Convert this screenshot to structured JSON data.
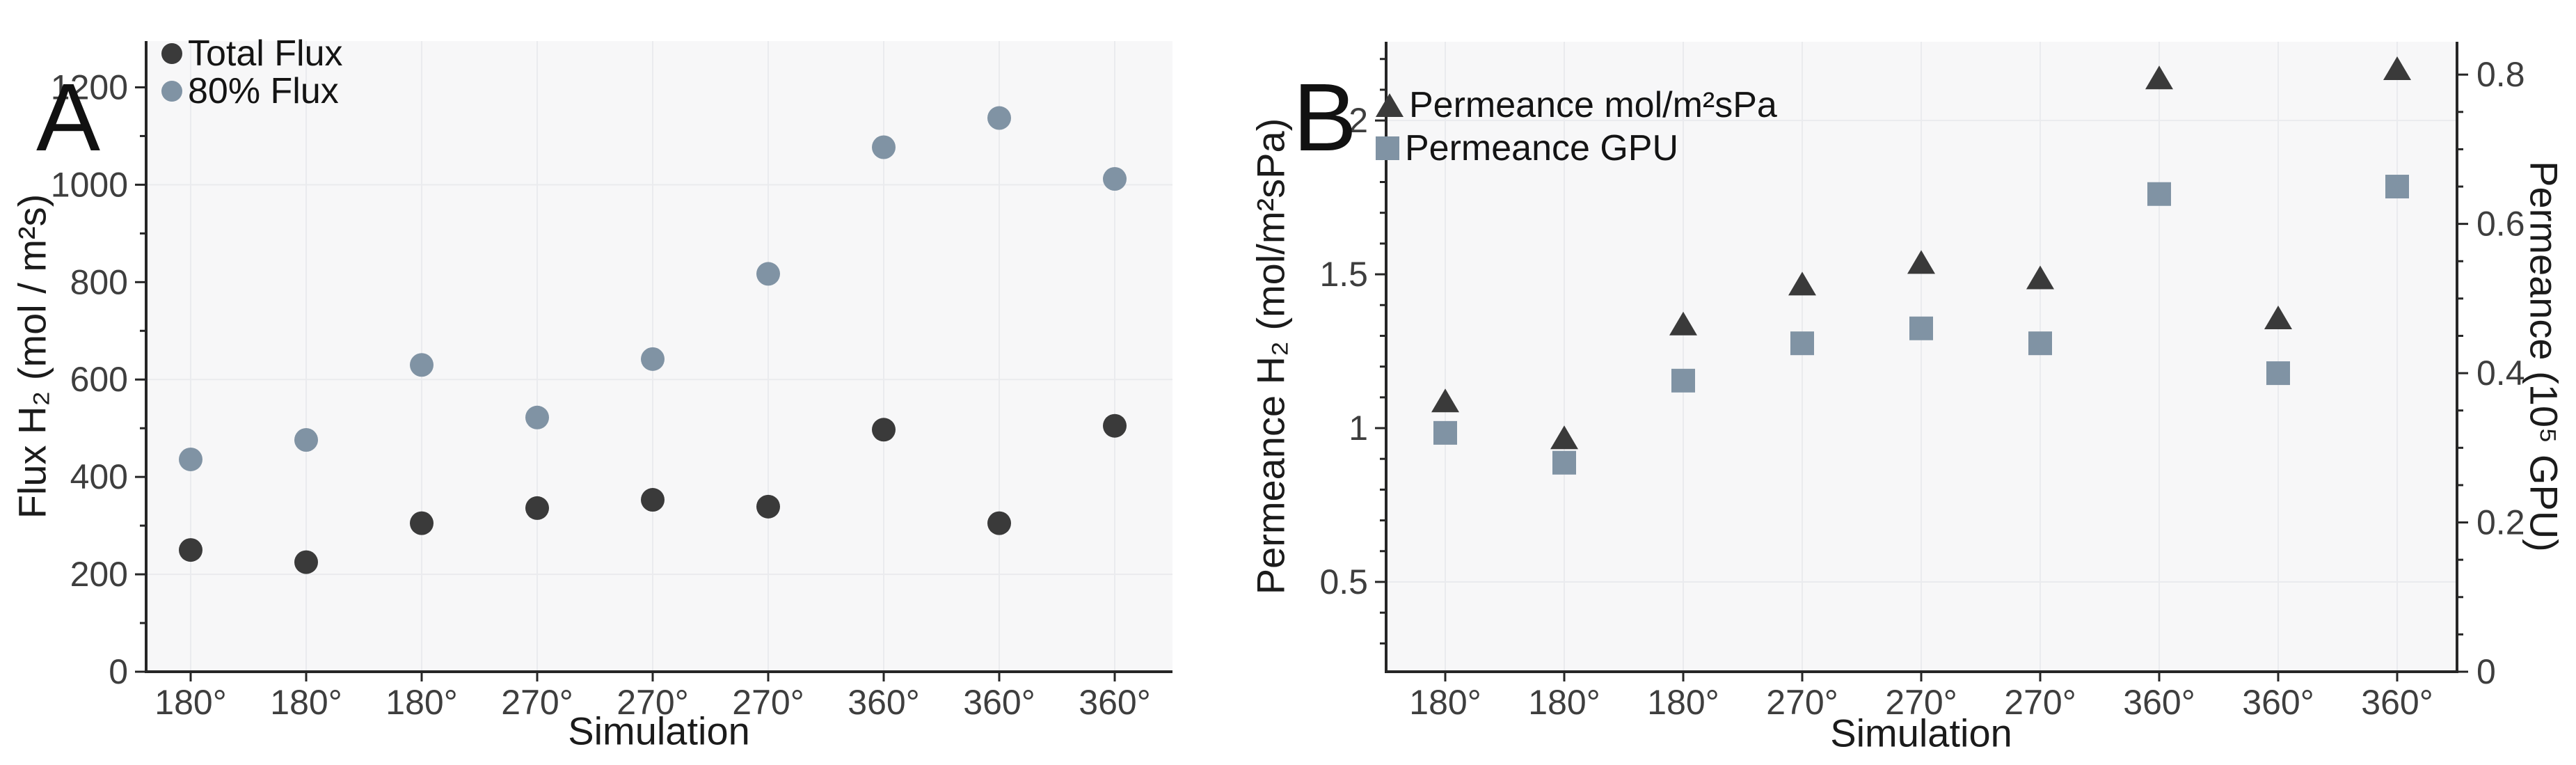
{
  "figure": {
    "panels": {
      "a": {
        "letter": "A",
        "x_label": "Simulation",
        "y_label": "Flux H₂ (mol / m²s)"
      },
      "b": {
        "letter": "B",
        "x_label": "Simulation",
        "y_label_left": "Permeance H₂ (mol/m²sPa)",
        "y_label_right": "Permeance (10⁵ GPU)"
      }
    },
    "colors": {
      "dark_marker": "#3a3a3a",
      "gray_marker": "#8093a4",
      "plot_background": "#f7f7f8",
      "gridline": "#eaebee",
      "spine": "#262626",
      "tick_label": "#3e3e3e"
    }
  },
  "chart_data": [
    {
      "type": "scatter",
      "title": "A",
      "categories": [
        "180°",
        "180°",
        "180°",
        "270°",
        "270°",
        "270°",
        "360°",
        "360°",
        "360°"
      ],
      "xlabel": "Simulation",
      "ylabel": "Flux H₂ (mol / m²s)",
      "ylim": [
        0,
        1295
      ],
      "yticks": [
        0,
        200,
        400,
        600,
        800,
        1000,
        1200
      ],
      "ytick_labels": [
        "0",
        "200",
        "400",
        "600",
        "800",
        "1000",
        "1200"
      ],
      "yminor_step": 100,
      "grid_y": [
        200,
        600,
        1000
      ],
      "grid_x": "all-categories",
      "legend_position": "top-left",
      "series": [
        {
          "name": "Total Flux",
          "marker": "circle",
          "color": "#3a3a3a",
          "values": [
            250,
            225,
            305,
            336,
            353,
            339,
            497,
            305,
            505
          ]
        },
        {
          "name": "80% Flux",
          "marker": "circle",
          "color": "#8093a4",
          "values": [
            436,
            476,
            630,
            522,
            642,
            817,
            1077,
            1137,
            1012
          ]
        }
      ]
    },
    {
      "type": "scatter",
      "title": "B",
      "categories": [
        "180°",
        "180°",
        "180°",
        "270°",
        "270°",
        "270°",
        "360°",
        "360°",
        "360°"
      ],
      "xlabel": "Simulation",
      "ylabel_left": "Permeance H₂ (mol/m²sPa)",
      "ylabel_right": "Permeance (10⁵ GPU)",
      "ylim_left": [
        0.208,
        2.256
      ],
      "yticks_left": [
        0.5,
        1,
        1.5,
        2
      ],
      "ytick_labels_left": [
        "0.5",
        "1",
        "1.5",
        "2"
      ],
      "yminor_step_left": 0.1,
      "ylim_right": [
        0,
        0.844
      ],
      "yticks_right": [
        0,
        0.2,
        0.4,
        0.6,
        0.8
      ],
      "ytick_labels_right": [
        "0",
        "0.2",
        "0.4",
        "0.6",
        "0.8"
      ],
      "yminor_step_right": 0.05,
      "grid_y_left": [
        0.5,
        2
      ],
      "grid_x": "all-categories",
      "legend_position": "top-left",
      "series": [
        {
          "name": "Permeance mol/m²sPa",
          "marker": "triangle",
          "axis": "left",
          "color": "#3a3a3a",
          "values": [
            1.09,
            0.97,
            1.34,
            1.47,
            1.54,
            1.49,
            2.14,
            1.36,
            2.17
          ]
        },
        {
          "name": "Permeance GPU",
          "marker": "square",
          "axis": "right",
          "color": "#8093a4",
          "values": [
            0.32,
            0.28,
            0.39,
            0.44,
            0.46,
            0.44,
            0.64,
            0.4,
            0.65
          ]
        }
      ]
    }
  ]
}
